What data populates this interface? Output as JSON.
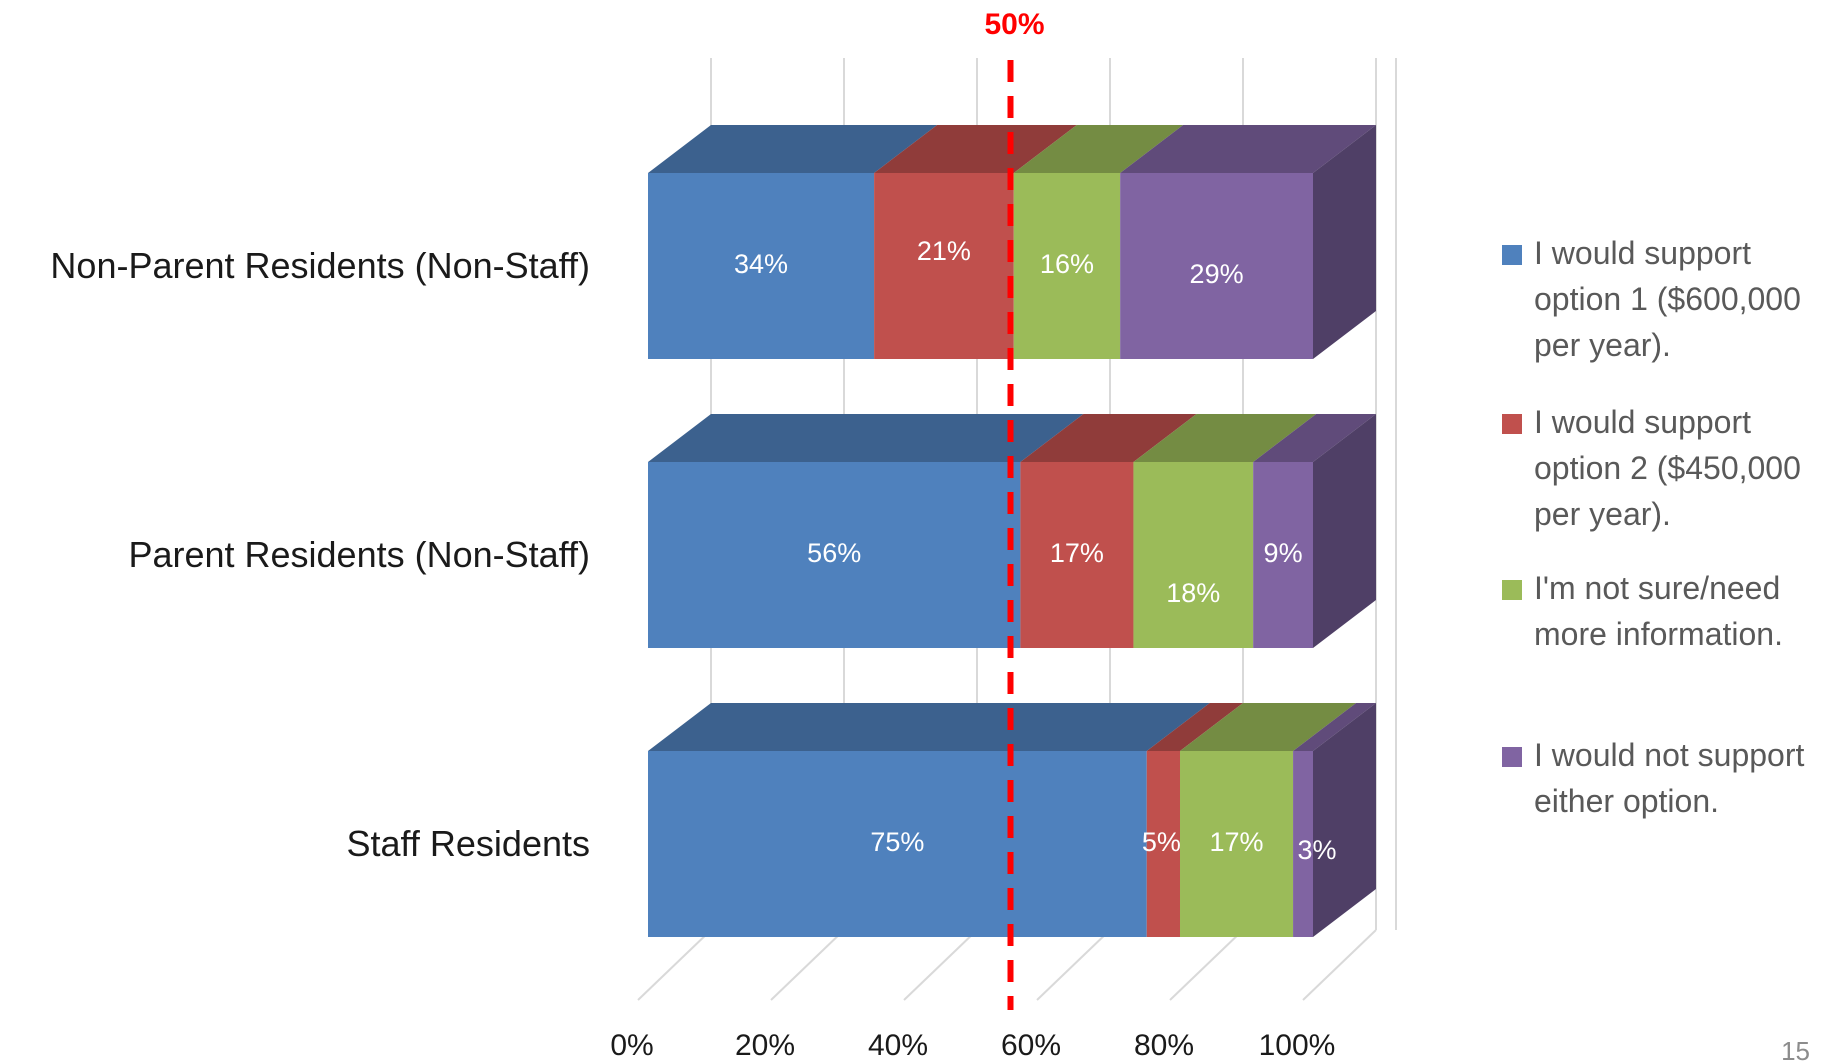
{
  "chart_data": {
    "type": "bar",
    "orientation": "horizontal",
    "stacked": "100%",
    "three_d": true,
    "categories": [
      "Non-Parent Residents (Non-Staff)",
      "Parent Residents (Non-Staff)",
      "Staff Residents"
    ],
    "series": [
      {
        "name": "I would support option 1 ($600,000 per year).",
        "values": [
          34,
          56,
          75
        ],
        "labels": [
          "34%",
          "56%",
          "75%"
        ],
        "color": "#4f81bd",
        "top_color": "#3c618e",
        "side_color": "#3a5f8c"
      },
      {
        "name": "I would support option 2 ($450,000 per year).",
        "values": [
          21,
          17,
          5
        ],
        "labels": [
          "21%",
          "17%",
          "5%"
        ],
        "color": "#c0504d",
        "top_color": "#903c3a",
        "side_color": "#8e3b39"
      },
      {
        "name": "I'm not sure/need more information.",
        "values": [
          16,
          18,
          17
        ],
        "labels": [
          "16%",
          "18%",
          "17%"
        ],
        "color": "#9bbb59",
        "top_color": "#748c43",
        "side_color": "#728a42"
      },
      {
        "name": "I would not support either option.",
        "values": [
          29,
          9,
          3
        ],
        "labels": [
          "29%",
          "9%",
          "3%"
        ],
        "color": "#8064a2",
        "top_color": "#604b7a",
        "side_color": "#4f3f66"
      }
    ],
    "xaxis": {
      "ticks": [
        "0%",
        "20%",
        "40%",
        "60%",
        "80%",
        "100%"
      ],
      "range": [
        0,
        100
      ]
    },
    "reference_line": {
      "value": 50,
      "label": "50%",
      "color": "#ff0000",
      "style": "dashed"
    },
    "legend_position": "right",
    "grid": true,
    "title": "",
    "xlabel": "",
    "ylabel": ""
  },
  "page_number": "15"
}
